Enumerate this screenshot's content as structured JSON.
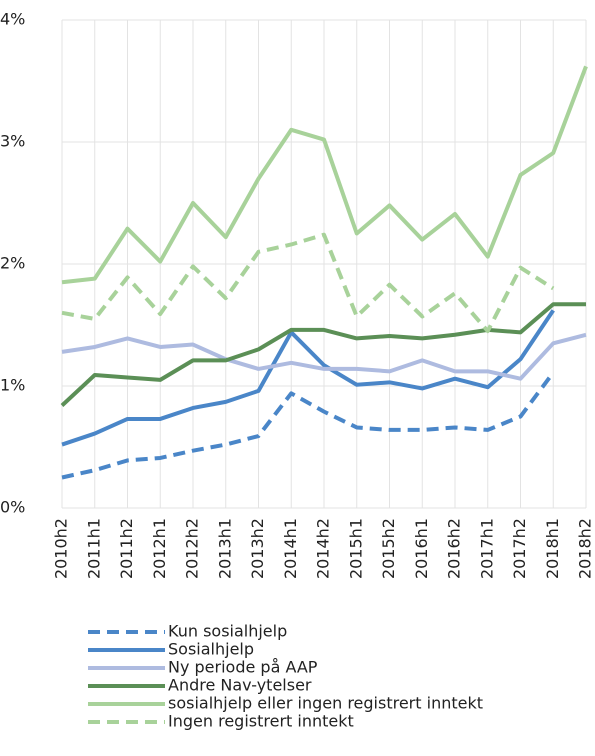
{
  "chart_data": {
    "type": "line",
    "categories": [
      "2010h2",
      "2011h1",
      "2011h2",
      "2012h1",
      "2012h2",
      "2013h1",
      "2013h2",
      "2014h1",
      "2014h2",
      "2015h1",
      "2015h2",
      "2016h1",
      "2016h2",
      "2017h1",
      "2017h2",
      "2018h1",
      "2018h2"
    ],
    "ylim": [
      0,
      4
    ],
    "yticks": [
      {
        "value": 0,
        "label": "0%"
      },
      {
        "value": 1,
        "label": "1%"
      },
      {
        "value": 2,
        "label": "2%"
      },
      {
        "value": 3,
        "label": "3%"
      },
      {
        "value": 4,
        "label": "4%"
      }
    ],
    "grid": true,
    "legend": "bottom",
    "series": [
      {
        "name": "Kun sosialhjelp",
        "color": "#4a86c8",
        "dashed": true,
        "values": [
          0.25,
          0.31,
          0.39,
          0.41,
          0.47,
          0.52,
          0.59,
          0.94,
          0.79,
          0.66,
          0.64,
          0.64,
          0.66,
          0.64,
          0.75,
          1.11,
          null
        ]
      },
      {
        "name": "Sosialhjelp",
        "color": "#4a86c8",
        "dashed": false,
        "values": [
          0.52,
          0.61,
          0.73,
          0.73,
          0.82,
          0.87,
          0.96,
          1.44,
          1.17,
          1.01,
          1.03,
          0.98,
          1.06,
          0.99,
          1.22,
          1.62,
          null
        ]
      },
      {
        "name": "Ny periode på AAP",
        "color": "#aebbe0",
        "dashed": false,
        "values": [
          1.28,
          1.32,
          1.39,
          1.32,
          1.34,
          1.22,
          1.14,
          1.19,
          1.14,
          1.14,
          1.12,
          1.21,
          1.12,
          1.12,
          1.06,
          1.35,
          1.42
        ]
      },
      {
        "name": "Andre Nav-ytelser",
        "color": "#5b8f56",
        "dashed": false,
        "values": [
          0.84,
          1.09,
          1.07,
          1.05,
          1.21,
          1.21,
          1.3,
          1.46,
          1.46,
          1.39,
          1.41,
          1.39,
          1.42,
          1.46,
          1.44,
          1.67,
          1.67
        ]
      },
      {
        "name": "sosialhjelp eller ingen registrert inntekt",
        "color": "#a8d29a",
        "dashed": false,
        "values": [
          1.85,
          1.88,
          2.29,
          2.02,
          2.5,
          2.22,
          2.7,
          3.1,
          3.02,
          2.25,
          2.48,
          2.2,
          2.41,
          2.06,
          2.73,
          2.91,
          3.62
        ]
      },
      {
        "name": "Ingen registrert inntekt",
        "color": "#a8d29a",
        "dashed": true,
        "values": [
          1.6,
          1.55,
          1.89,
          1.59,
          1.98,
          1.72,
          2.1,
          2.16,
          2.24,
          1.57,
          1.83,
          1.57,
          1.76,
          1.45,
          1.97,
          1.8,
          null
        ]
      }
    ]
  }
}
